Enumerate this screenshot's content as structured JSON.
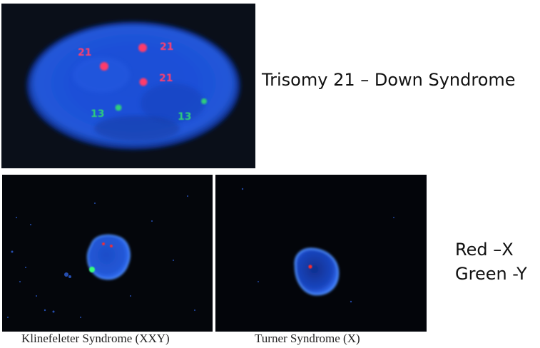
{
  "trisomy_panel": {
    "title": "Trisomy 21 – Down Syndrome",
    "probe_labels": [
      "21",
      "21",
      "21",
      "13",
      "13"
    ],
    "colors": {
      "nucleus": "#1f5cff",
      "chromosome_21_signal": "#ff3b6a",
      "chromosome_13_signal": "#2ecf7a",
      "background": "#0a0f19"
    }
  },
  "sex_chromosome_panels": {
    "legend": {
      "red": "Red –X",
      "green": "Green -Y"
    },
    "klinefelter": {
      "caption": "Klinefeleter Syndrome (XXY)",
      "red_signals": 2,
      "green_signals": 1
    },
    "turner": {
      "caption": "Turner Syndrome (X)",
      "red_signals": 1,
      "green_signals": 0
    },
    "colors": {
      "nucleus": "#2f6df0",
      "x_signal": "#ff2a2a",
      "y_signal": "#39ff7a",
      "background": "#03050a"
    }
  }
}
